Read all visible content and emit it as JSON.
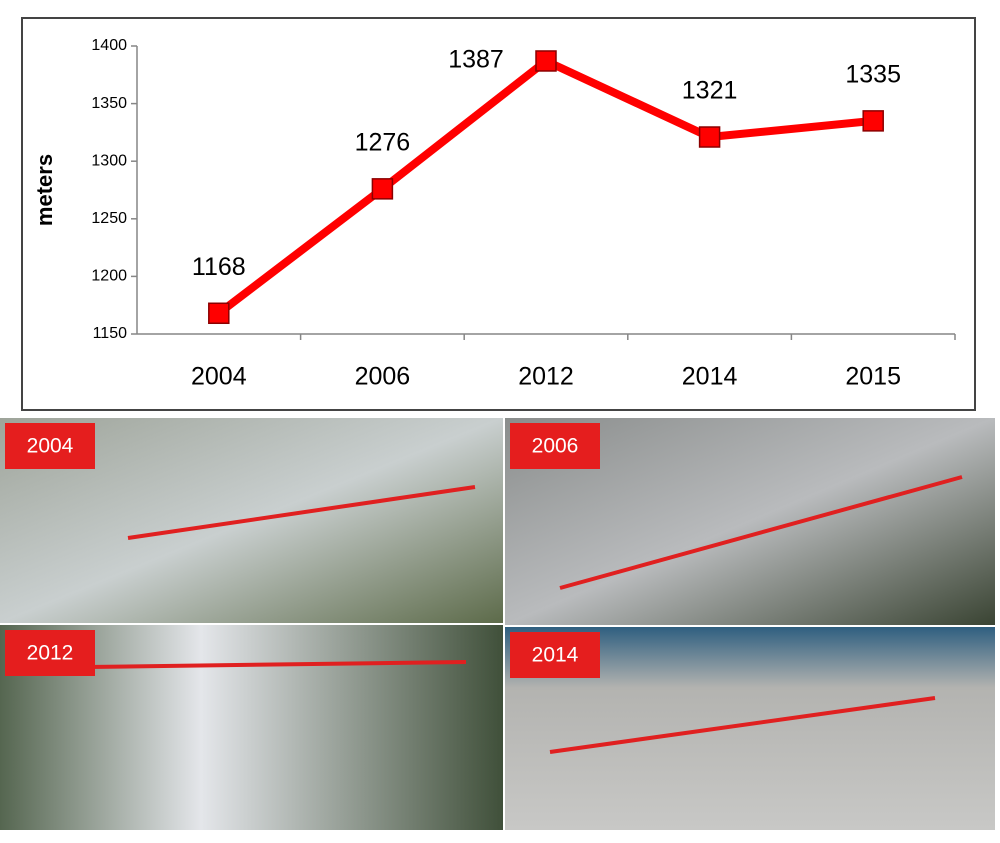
{
  "chart_data": {
    "type": "line",
    "ylabel": "meters",
    "categories": [
      "2004",
      "2006",
      "2012",
      "2014",
      "2015"
    ],
    "series": [
      {
        "name": "meters",
        "color": "#ff0000",
        "values": [
          1168,
          1276,
          1387,
          1321,
          1335
        ]
      }
    ],
    "ylim": [
      1150,
      1400
    ],
    "yticks": [
      1150,
      1200,
      1250,
      1300,
      1350,
      1400
    ],
    "grid": false
  },
  "images": [
    {
      "label": "2004"
    },
    {
      "label": "2006"
    },
    {
      "label": "2012"
    },
    {
      "label": "2014"
    }
  ]
}
